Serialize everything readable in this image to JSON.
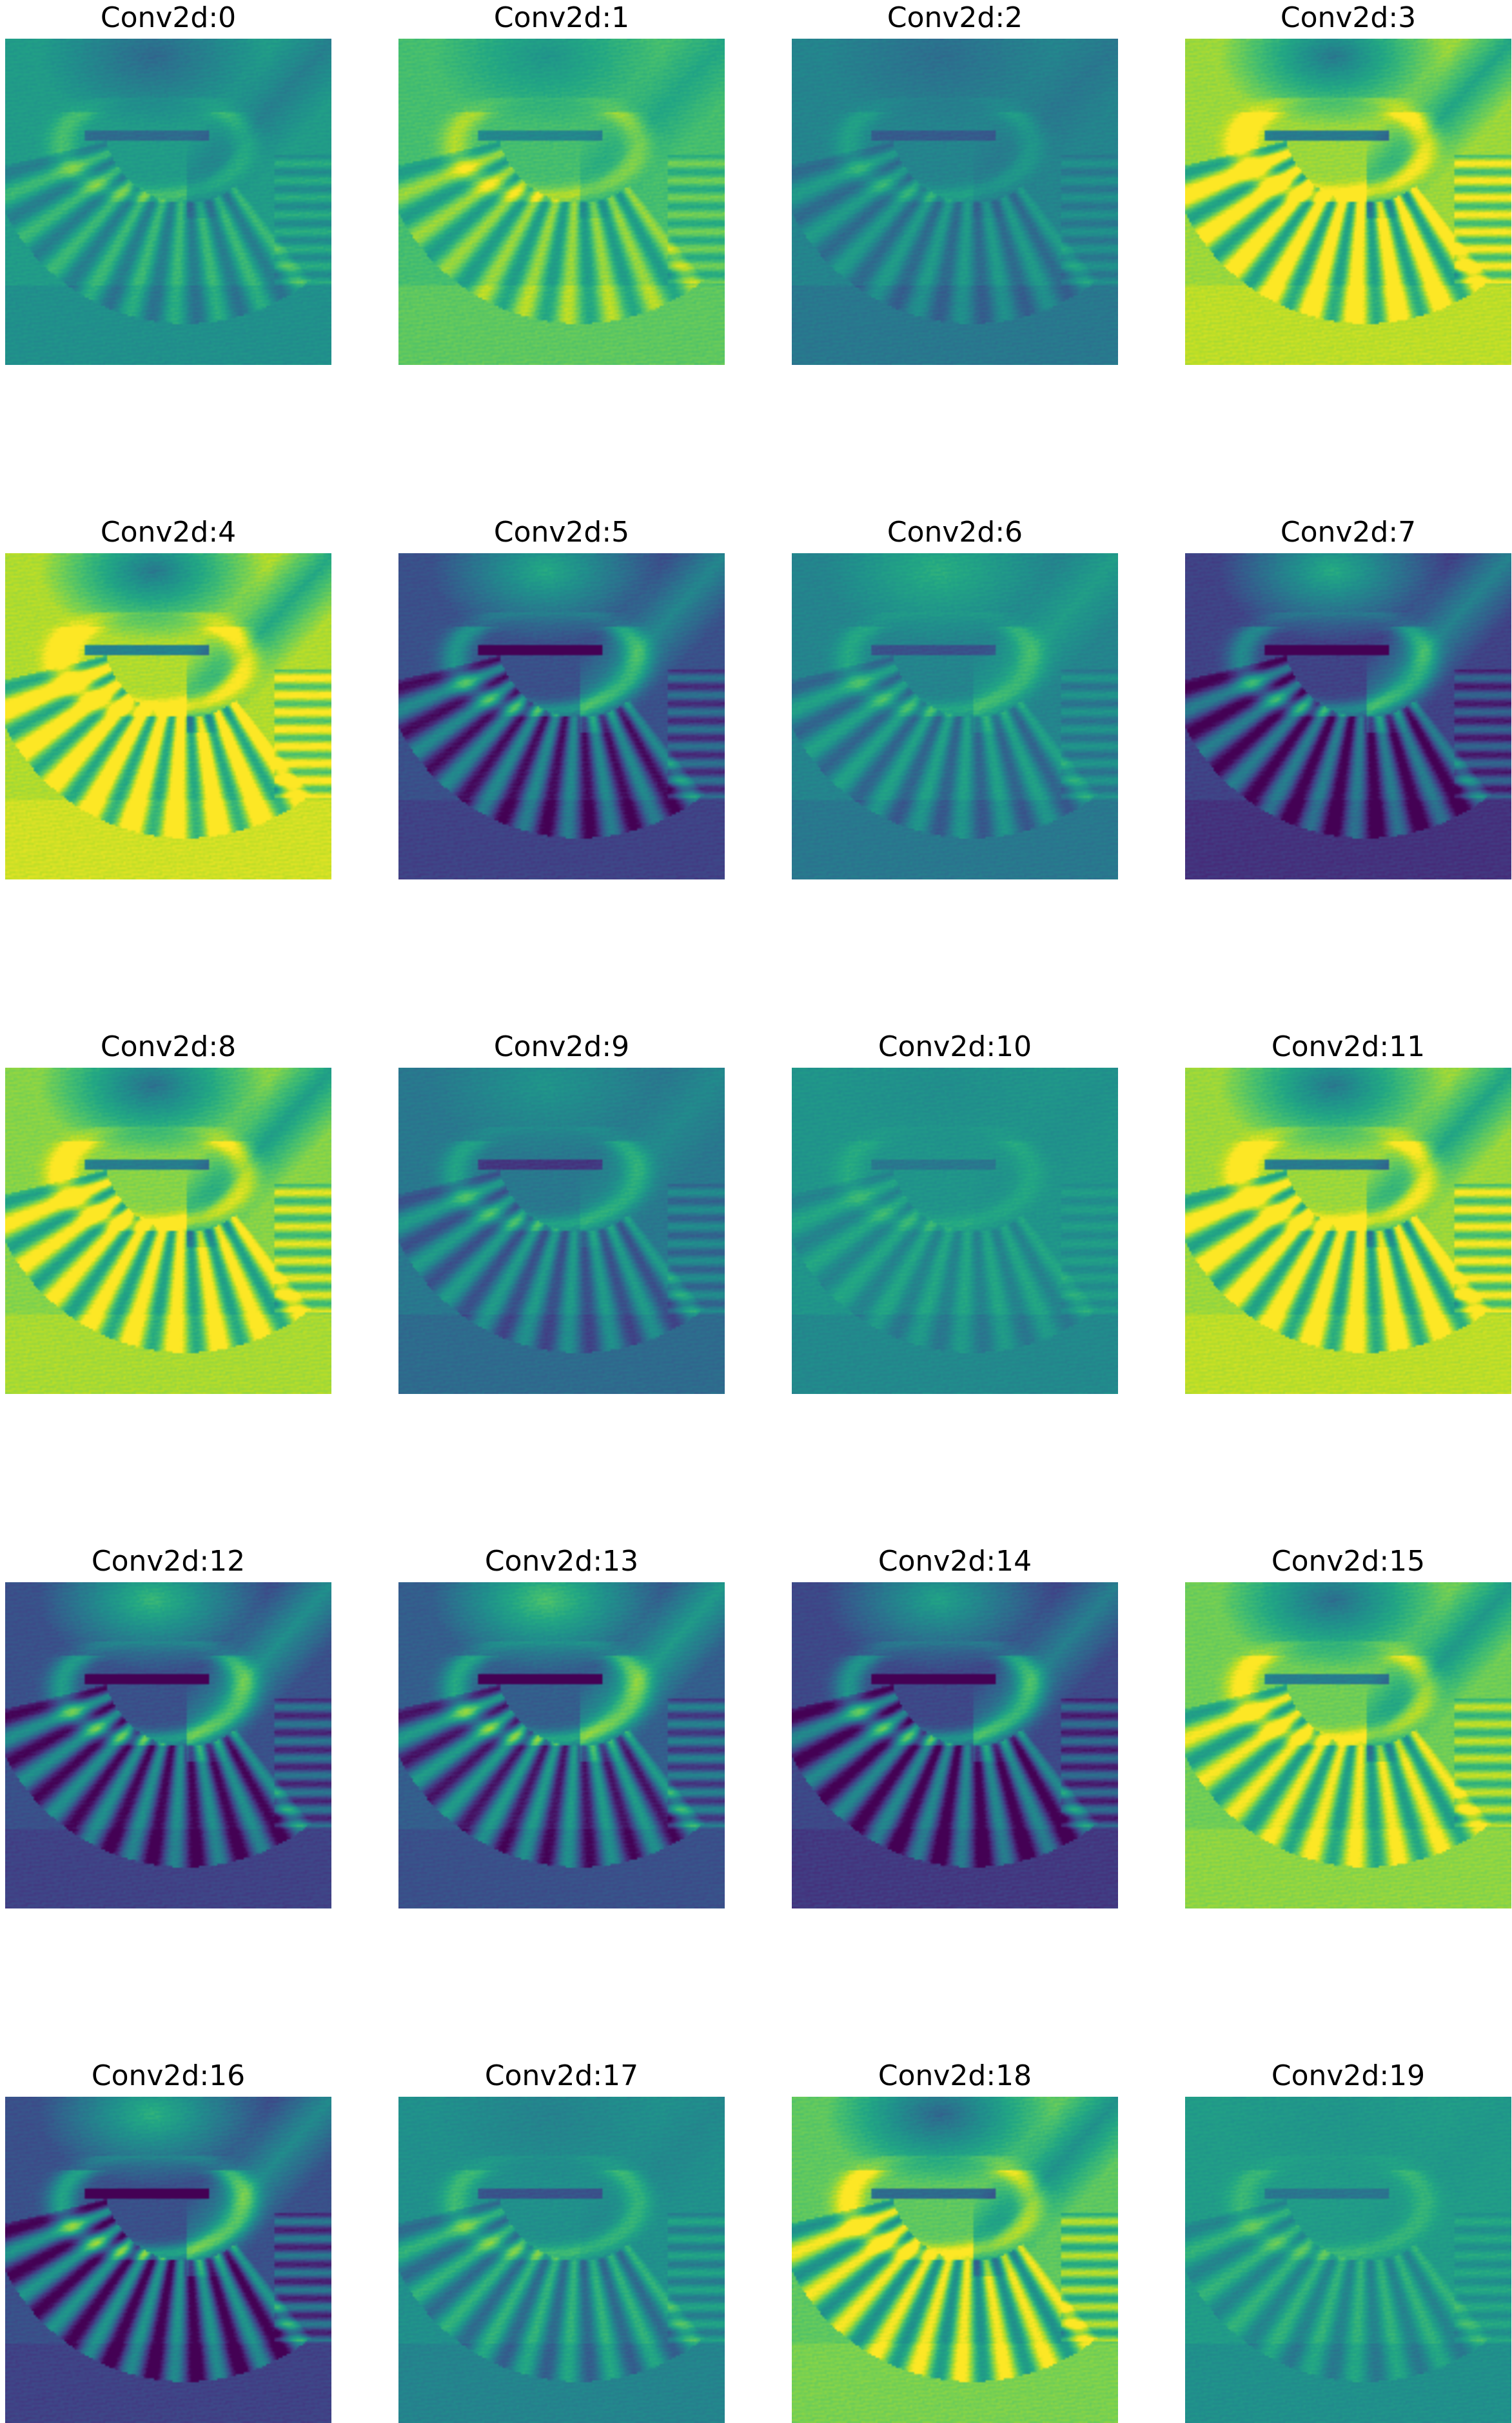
{
  "figure": {
    "panels": [
      {
        "title": "Conv2d:0",
        "colormap": "viridis",
        "base_level": 0.55,
        "top_dark": 0.35,
        "contrast": 0.25
      },
      {
        "title": "Conv2d:1",
        "colormap": "viridis",
        "base_level": 0.7,
        "top_dark": 0.3,
        "contrast": 0.3
      },
      {
        "title": "Conv2d:2",
        "colormap": "viridis",
        "base_level": 0.45,
        "top_dark": 0.15,
        "contrast": 0.2
      },
      {
        "title": "Conv2d:3",
        "colormap": "viridis",
        "base_level": 0.85,
        "top_dark": 0.75,
        "contrast": 0.55
      },
      {
        "title": "Conv2d:4",
        "colormap": "viridis",
        "base_level": 0.88,
        "top_dark": 0.8,
        "contrast": 0.55
      },
      {
        "title": "Conv2d:5",
        "colormap": "viridis",
        "base_level": 0.25,
        "top_dark": -0.6,
        "contrast": 0.45
      },
      {
        "title": "Conv2d:6",
        "colormap": "viridis",
        "base_level": 0.45,
        "top_dark": -0.3,
        "contrast": 0.25
      },
      {
        "title": "Conv2d:7",
        "colormap": "viridis",
        "base_level": 0.2,
        "top_dark": -0.7,
        "contrast": 0.45
      },
      {
        "title": "Conv2d:8",
        "colormap": "viridis",
        "base_level": 0.82,
        "top_dark": 0.75,
        "contrast": 0.5
      },
      {
        "title": "Conv2d:9",
        "colormap": "viridis",
        "base_level": 0.4,
        "top_dark": -0.2,
        "contrast": 0.3
      },
      {
        "title": "Conv2d:10",
        "colormap": "viridis",
        "base_level": 0.52,
        "top_dark": 0.05,
        "contrast": 0.15
      },
      {
        "title": "Conv2d:11",
        "colormap": "viridis",
        "base_level": 0.85,
        "top_dark": 0.75,
        "contrast": 0.55
      },
      {
        "title": "Conv2d:12",
        "colormap": "viridis",
        "base_level": 0.25,
        "top_dark": -0.7,
        "contrast": 0.5
      },
      {
        "title": "Conv2d:13",
        "colormap": "viridis",
        "base_level": 0.3,
        "top_dark": -0.7,
        "contrast": 0.5
      },
      {
        "title": "Conv2d:14",
        "colormap": "viridis",
        "base_level": 0.22,
        "top_dark": -0.6,
        "contrast": 0.5
      },
      {
        "title": "Conv2d:15",
        "colormap": "viridis",
        "base_level": 0.78,
        "top_dark": 0.7,
        "contrast": 0.45
      },
      {
        "title": "Conv2d:16",
        "colormap": "viridis",
        "base_level": 0.25,
        "top_dark": -0.65,
        "contrast": 0.55
      },
      {
        "title": "Conv2d:17",
        "colormap": "viridis",
        "base_level": 0.5,
        "top_dark": 0.1,
        "contrast": 0.3
      },
      {
        "title": "Conv2d:18",
        "colormap": "viridis",
        "base_level": 0.75,
        "top_dark": 0.7,
        "contrast": 0.5
      },
      {
        "title": "Conv2d:19",
        "colormap": "viridis",
        "base_level": 0.55,
        "top_dark": 0.05,
        "contrast": 0.2
      }
    ]
  }
}
